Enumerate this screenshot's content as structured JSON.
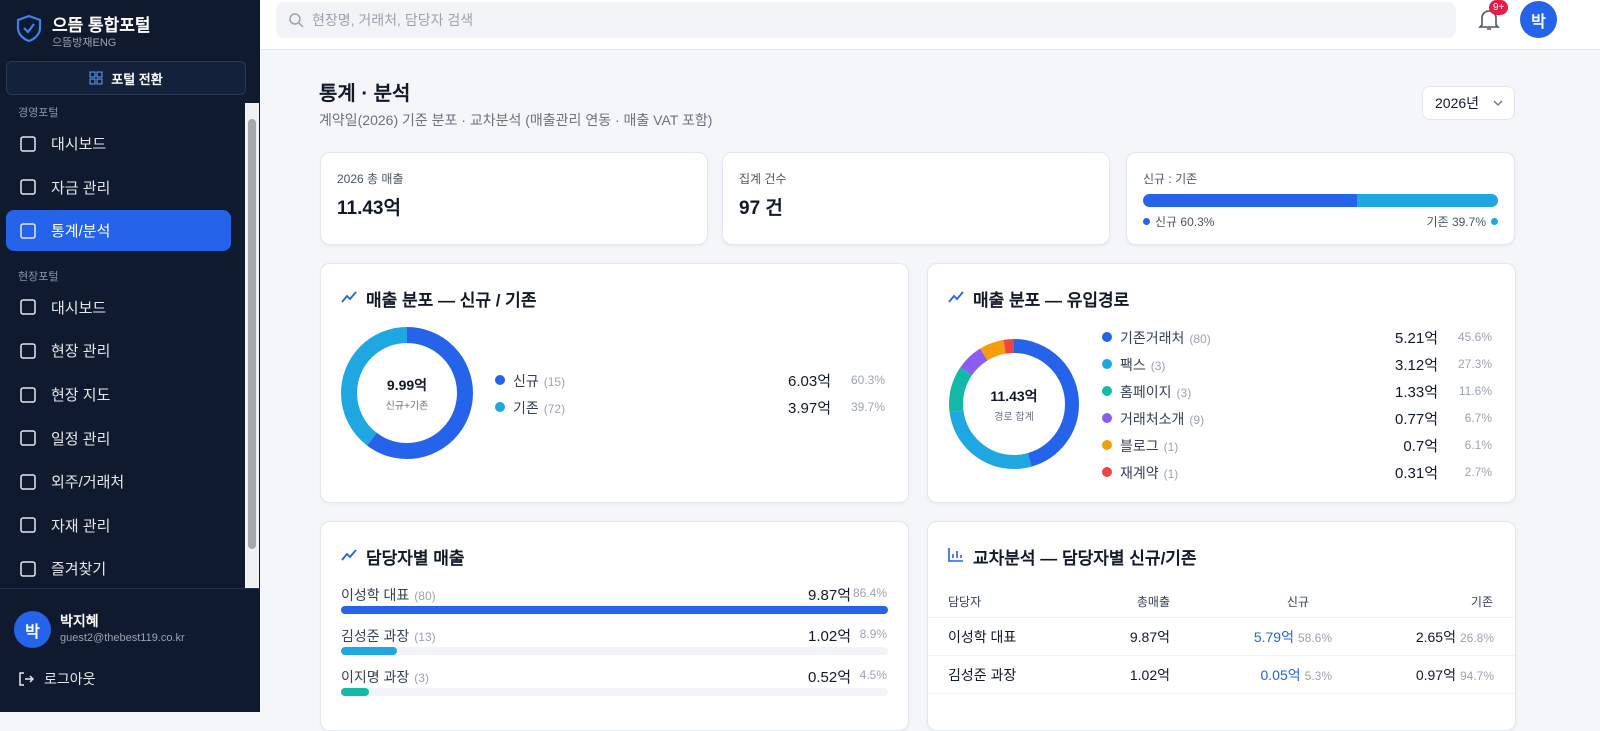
{
  "sidebar": {
    "brand": "으뜸 통합포털",
    "company": "으뜸방재ENG",
    "switch": "포털 전환",
    "sections": [
      {
        "title": "경영포털",
        "items": [
          "대시보드",
          "자금 관리",
          "통계/분석"
        ]
      },
      {
        "title": "현장포털",
        "items": [
          "대시보드",
          "현장 관리",
          "현장 지도",
          "일정 관리",
          "외주/거래처",
          "자재 관리",
          "즐겨찾기"
        ]
      }
    ],
    "user": {
      "avatar": "박",
      "name": "박지혜",
      "email": "guest2@thebest119.co.kr"
    },
    "logout": "로그아웃"
  },
  "topbar": {
    "search": "현장명, 거래처, 담당자 검색",
    "badge": "9+",
    "avatar": "박"
  },
  "header": {
    "title": "통계 · 분석",
    "subtitle": "계약일(2026) 기준 분포 · 교차분석 (매출관리 연동 · 매출 VAT 포함)",
    "year": "2026년"
  },
  "kpis": [
    {
      "label": "2026 총 매출",
      "value": "11.43억"
    },
    {
      "label": "집계 건수",
      "value": "97 건"
    }
  ],
  "ratio": {
    "label": "신규 : 기존",
    "segments": [
      {
        "legend": "신규 60.3%",
        "pct": 60.3,
        "color": "#2563eb"
      },
      {
        "legend": "기존 39.7%",
        "pct": 39.7,
        "color": "#1ea7e1"
      }
    ]
  },
  "split": {
    "title": "매출 분포 — 신규 / 기존",
    "center_value": "9.99억",
    "center_label": "신규+기존",
    "rows": [
      {
        "name": "신규",
        "count": "(15)",
        "amount": "6.03억",
        "pct": 60.3,
        "pct_label": "60.3%",
        "color": "#2563eb"
      },
      {
        "name": "기존",
        "count": "(72)",
        "amount": "3.97억",
        "pct": 39.7,
        "pct_label": "39.7%",
        "color": "#1ea7e1"
      }
    ]
  },
  "channel": {
    "title": "매출 분포 — 유입경로",
    "center_value": "11.43억",
    "center_label": "경로 합계",
    "rows": [
      {
        "name": "기존거래처",
        "count": "(80)",
        "amount": "5.21억",
        "pct": 45.6,
        "pct_label": "45.6%",
        "color": "#2563eb"
      },
      {
        "name": "팩스",
        "count": "(3)",
        "amount": "3.12억",
        "pct": 27.3,
        "pct_label": "27.3%",
        "color": "#1ea7e1"
      },
      {
        "name": "홈페이지",
        "count": "(3)",
        "amount": "1.33억",
        "pct": 11.6,
        "pct_label": "11.6%",
        "color": "#14b8a6"
      },
      {
        "name": "거래처소개",
        "count": "(9)",
        "amount": "0.77억",
        "pct": 6.7,
        "pct_label": "6.7%",
        "color": "#8b5cf6"
      },
      {
        "name": "블로그",
        "count": "(1)",
        "amount": "0.7억",
        "pct": 6.1,
        "pct_label": "6.1%",
        "color": "#f59e0b"
      },
      {
        "name": "재계약",
        "count": "(1)",
        "amount": "0.31억",
        "pct": 2.7,
        "pct_label": "2.7%",
        "color": "#ef4444"
      }
    ]
  },
  "managers": {
    "title": "담당자별 매출",
    "rows": [
      {
        "name": "이성학 대표",
        "count": "(80)",
        "amount": "9.87억",
        "pct": 86.4,
        "pct_label": "86.4%",
        "color": "#2563eb"
      },
      {
        "name": "김성준 과장",
        "count": "(13)",
        "amount": "1.02억",
        "pct": 8.9,
        "pct_label": "8.9%",
        "color": "#1ea7e1"
      },
      {
        "name": "이지명 과장",
        "count": "(3)",
        "amount": "0.52억",
        "pct": 4.5,
        "pct_label": "4.5%",
        "color": "#14b8a6"
      }
    ]
  },
  "cross": {
    "title": "교차분석 — 담당자별 신규/기존",
    "columns": [
      "담당자",
      "총매출",
      "신규",
      "기존"
    ],
    "rows": [
      {
        "name": "이성학 대표",
        "total": "9.87억",
        "new": "5.79억",
        "new_pct": "58.6%",
        "old": "2.65억",
        "old_pct": "26.8%"
      },
      {
        "name": "김성준 과장",
        "total": "1.02억",
        "new": "0.05억",
        "new_pct": "5.3%",
        "old": "0.97억",
        "old_pct": "94.7%"
      }
    ]
  }
}
